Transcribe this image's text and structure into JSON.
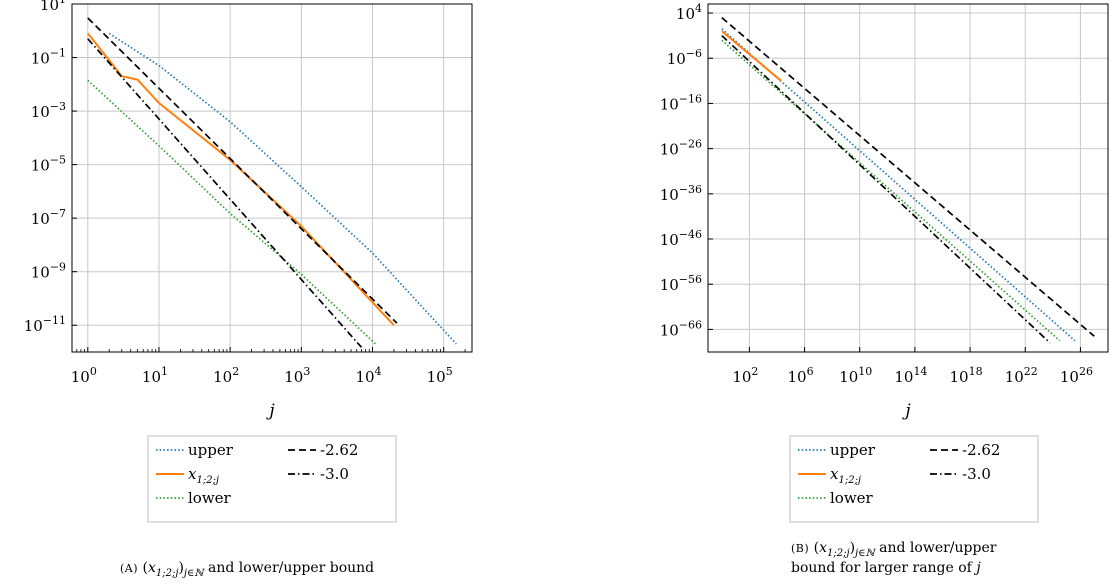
{
  "chart_data": [
    {
      "type": "line",
      "xscale": "log",
      "yscale": "log",
      "xlim": [
        0.6,
        250000
      ],
      "ylim": [
        1e-12,
        10
      ],
      "grid": true,
      "xlabel": "j",
      "xticks": [
        1,
        10,
        100,
        1000,
        10000,
        100000
      ],
      "xtick_labels": [
        {
          "base": "10",
          "exp": "0"
        },
        {
          "base": "10",
          "exp": "1"
        },
        {
          "base": "10",
          "exp": "2"
        },
        {
          "base": "10",
          "exp": "3"
        },
        {
          "base": "10",
          "exp": "4"
        },
        {
          "base": "10",
          "exp": "5"
        }
      ],
      "yticks": [
        10,
        0.1,
        0.001,
        1e-05,
        1e-07,
        1e-09,
        1e-11
      ],
      "ytick_labels": [
        {
          "base": "10",
          "exp": "1"
        },
        {
          "base": "10",
          "exp": "−1"
        },
        {
          "base": "10",
          "exp": "−3"
        },
        {
          "base": "10",
          "exp": "−5"
        },
        {
          "base": "10",
          "exp": "−7"
        },
        {
          "base": "10",
          "exp": "−9"
        },
        {
          "base": "10",
          "exp": "−11"
        }
      ],
      "series": [
        {
          "name": "upper",
          "color": "#1f77b4",
          "dash": "dotted",
          "x": [
            2,
            10,
            100,
            1000,
            10000,
            150000
          ],
          "y": [
            0.8,
            0.05,
            0.0004,
            1.5e-06,
            5e-09,
            2e-12
          ]
        },
        {
          "name": "x",
          "color": "#ff7f0e",
          "dash": "solid",
          "x": [
            1,
            3,
            4,
            5,
            10,
            100,
            1000,
            20000
          ],
          "y": [
            0.8,
            0.02,
            0.017,
            0.015,
            0.002,
            1.5e-05,
            5e-08,
            1e-11
          ]
        },
        {
          "name": "lower",
          "color": "#2ca02c",
          "dash": "dotted",
          "x": [
            1,
            10,
            100,
            1000,
            11000
          ],
          "y": [
            0.014,
            5e-05,
            1.5e-07,
            8e-10,
            2e-12
          ]
        },
        {
          "name": "-2.62",
          "color": "#000000",
          "dash": "dashed",
          "x": [
            1,
            22000
          ],
          "y": [
            3,
            1.2e-11
          ]
        },
        {
          "name": "-3.0",
          "color": "#000000",
          "dash": "dashdot",
          "x": [
            1,
            7000
          ],
          "y": [
            0.5,
            1.5e-12
          ]
        }
      ],
      "legend": {
        "placement": "below",
        "entries": [
          {
            "series": 0,
            "label": "upper"
          },
          {
            "series": 3,
            "label": "-2.62"
          },
          {
            "series": 1,
            "label": "x",
            "sub": "1;2;j"
          },
          {
            "series": 4,
            "label": "-3.0"
          },
          {
            "series": 2,
            "label": "lower"
          }
        ]
      },
      "caption": {
        "sc": "(A)",
        "parts": [
          "(",
          "x",
          "1;2;j",
          ")",
          "j∈ℕ",
          " and lower/upper bound"
        ]
      }
    },
    {
      "type": "line",
      "xscale": "log",
      "yscale": "log",
      "xlim_exp": [
        -1,
        28
      ],
      "ylim_exp": [
        -71,
        6
      ],
      "grid": true,
      "xlabel": "j",
      "xticks_exp": [
        2,
        6,
        10,
        14,
        18,
        22,
        26
      ],
      "xtick_labels": [
        {
          "base": "10",
          "exp": "2"
        },
        {
          "base": "10",
          "exp": "6"
        },
        {
          "base": "10",
          "exp": "10"
        },
        {
          "base": "10",
          "exp": "14"
        },
        {
          "base": "10",
          "exp": "18"
        },
        {
          "base": "10",
          "exp": "22"
        },
        {
          "base": "10",
          "exp": "26"
        }
      ],
      "yticks_exp": [
        4,
        -6,
        -16,
        -26,
        -36,
        -46,
        -56,
        -66
      ],
      "ytick_labels": [
        {
          "base": "10",
          "exp": "4"
        },
        {
          "base": "10",
          "exp": "−6"
        },
        {
          "base": "10",
          "exp": "−16"
        },
        {
          "base": "10",
          "exp": "−26"
        },
        {
          "base": "10",
          "exp": "−36"
        },
        {
          "base": "10",
          "exp": "−46"
        },
        {
          "base": "10",
          "exp": "−56"
        },
        {
          "base": "10",
          "exp": "−66"
        }
      ],
      "series": [
        {
          "name": "upper",
          "color": "#1f77b4",
          "dash": "dotted",
          "x_exp": [
            0,
            25.6
          ],
          "y_exp": [
            0.5,
            -68.5
          ]
        },
        {
          "name": "x",
          "color": "#ff7f0e",
          "dash": "solid",
          "x_exp": [
            0,
            4.3
          ],
          "y_exp": [
            0,
            -11
          ]
        },
        {
          "name": "lower",
          "color": "#2ca02c",
          "dash": "dotted",
          "x_exp": [
            0,
            24.5
          ],
          "y_exp": [
            -2,
            -68.5
          ]
        },
        {
          "name": "-2.62",
          "color": "#000000",
          "dash": "dashed",
          "x_exp": [
            0,
            27
          ],
          "y_exp": [
            3,
            -67.5
          ]
        },
        {
          "name": "-3.0",
          "color": "#000000",
          "dash": "dashdot",
          "x_exp": [
            0,
            23.8
          ],
          "y_exp": [
            -1,
            -69
          ]
        }
      ],
      "legend": {
        "placement": "below",
        "entries": [
          {
            "series": 0,
            "label": "upper"
          },
          {
            "series": 3,
            "label": "-2.62"
          },
          {
            "series": 1,
            "label": "x",
            "sub": "1;2;j"
          },
          {
            "series": 4,
            "label": "-3.0"
          },
          {
            "series": 2,
            "label": "lower"
          }
        ]
      },
      "caption": {
        "sc": "(B)",
        "parts": [
          "(",
          "x",
          "1;2;j",
          ")",
          "j∈ℕ",
          " and lower/upper"
        ],
        "line2": [
          "bound for larger range of ",
          "j"
        ]
      }
    }
  ]
}
